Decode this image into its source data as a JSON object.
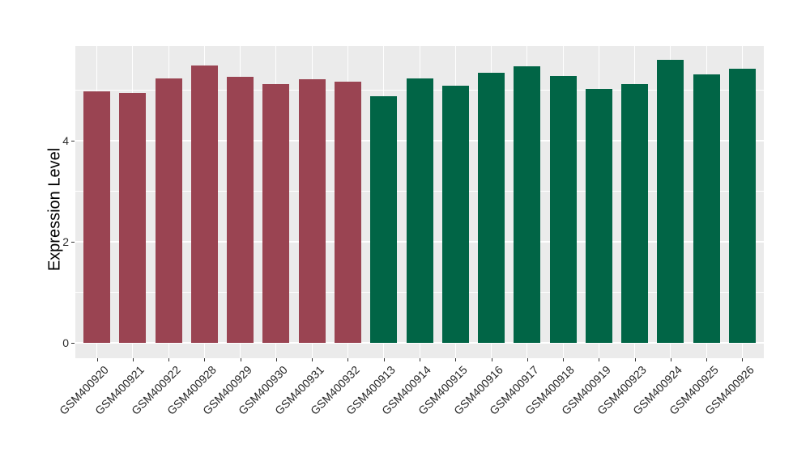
{
  "chart_data": {
    "type": "bar",
    "title": "",
    "xlabel": "",
    "ylabel": "Expression Level",
    "categories": [
      "GSM400920",
      "GSM400921",
      "GSM400922",
      "GSM400928",
      "GSM400929",
      "GSM400930",
      "GSM400931",
      "GSM400932",
      "GSM400913",
      "GSM400914",
      "GSM400915",
      "GSM400916",
      "GSM400917",
      "GSM400918",
      "GSM400919",
      "GSM400923",
      "GSM400924",
      "GSM400925",
      "GSM400926"
    ],
    "values": [
      4.97,
      4.94,
      5.23,
      5.49,
      5.26,
      5.11,
      5.21,
      5.17,
      4.88,
      5.23,
      5.08,
      5.34,
      5.47,
      5.27,
      5.02,
      5.11,
      5.6,
      5.31,
      5.42
    ],
    "bar_groups": [
      "A",
      "A",
      "A",
      "A",
      "A",
      "A",
      "A",
      "A",
      "B",
      "B",
      "B",
      "B",
      "B",
      "B",
      "B",
      "B",
      "B",
      "B",
      "B"
    ],
    "group_colors": {
      "A": "#9A4452",
      "B": "#016546"
    },
    "yticks": [
      0,
      2,
      4
    ],
    "minor_gridlines": [
      1,
      3,
      5
    ],
    "ylim": [
      -0.31,
      5.87
    ],
    "legend_position": "none",
    "grid": "on",
    "panel_background": "#EBEBEB",
    "grid_color": "#FFFFFF",
    "axis_text_color": "#262626"
  }
}
